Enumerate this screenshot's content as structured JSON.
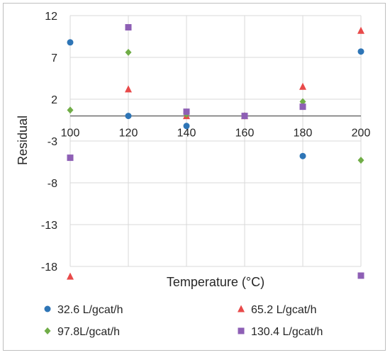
{
  "chart_data": {
    "type": "scatter",
    "title": "",
    "xlabel": "Temperature (°C)",
    "ylabel": "Residual",
    "xlim": [
      100,
      200
    ],
    "ylim": [
      -18,
      12
    ],
    "x_ticks": [
      100,
      120,
      140,
      160,
      180,
      200
    ],
    "y_ticks": [
      12,
      7,
      2,
      -3,
      -8,
      -13,
      -18
    ],
    "grid": true,
    "legend_position": "bottom",
    "series": [
      {
        "name": "32.6 L/gcat/h",
        "marker": "circle",
        "color": "#2e75b6",
        "points": [
          [
            100,
            8.8
          ],
          [
            120,
            0.0
          ],
          [
            140,
            -1.2
          ],
          [
            160,
            0.0
          ],
          [
            180,
            -4.8
          ],
          [
            200,
            7.7
          ]
        ]
      },
      {
        "name": "65.2 L/gcat/h",
        "marker": "triangle",
        "color": "#e84a4a",
        "points": [
          [
            100,
            -19.2
          ],
          [
            120,
            3.2
          ],
          [
            140,
            0.0
          ],
          [
            160,
            0.0
          ],
          [
            180,
            3.5
          ],
          [
            200,
            10.2
          ]
        ]
      },
      {
        "name": "97.8L/gcat/h",
        "marker": "diamond",
        "color": "#70ad47",
        "points": [
          [
            100,
            0.7
          ],
          [
            120,
            7.6
          ],
          [
            140,
            0.2
          ],
          [
            160,
            0.0
          ],
          [
            180,
            1.7
          ],
          [
            200,
            -5.3
          ]
        ]
      },
      {
        "name": "130.4 L/gcat/h",
        "marker": "square",
        "color": "#8e5fb5",
        "points": [
          [
            100,
            -5.0
          ],
          [
            120,
            10.6
          ],
          [
            140,
            0.5
          ],
          [
            160,
            0.0
          ],
          [
            180,
            1.1
          ],
          [
            200,
            -19.1
          ]
        ]
      }
    ]
  }
}
